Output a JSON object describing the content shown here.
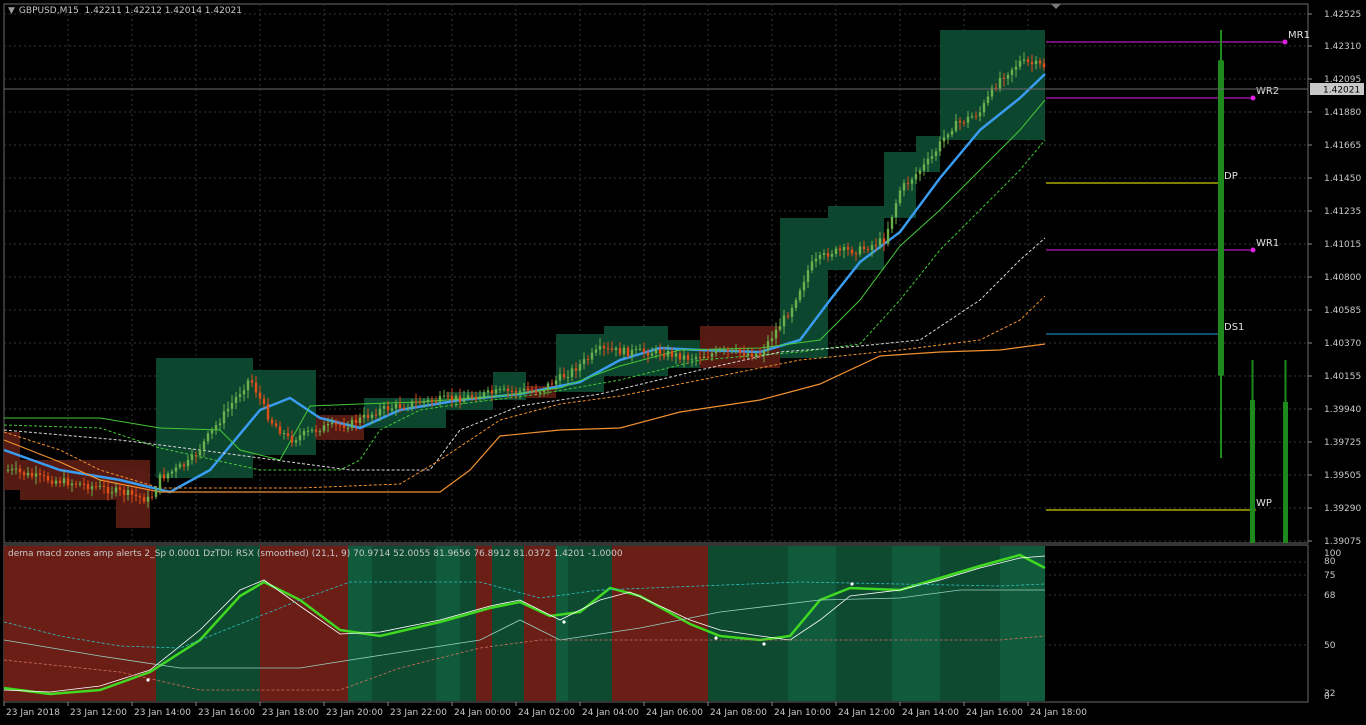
{
  "header": {
    "symbol": "GBPUSD,M15",
    "ohlc": "1.42211 1.42212 1.42014 1.42021"
  },
  "indicator_header": "dema macd zones amp alerts 2_Sp 0.0001  DzTDI:  RSX (smoothed) (21,1, 9) 70.9714 52.0055 81.9656 76.8912 81.0372 1.4201 -1.0000",
  "price_axis": {
    "labels": [
      "1.42525",
      "1.42310",
      "1.42095",
      "1.41880",
      "1.41665",
      "1.41450",
      "1.41235",
      "1.41015",
      "1.40800",
      "1.40585",
      "1.40370",
      "1.40155",
      "1.39940",
      "1.39725",
      "1.39505",
      "1.39290",
      "1.39075"
    ],
    "current_price": "1.42021"
  },
  "sub_axis": {
    "labels": [
      "100",
      "80",
      "75",
      "68",
      "50",
      "32",
      "0"
    ]
  },
  "time_axis": {
    "labels": [
      "23 Jan 2018",
      "23 Jan 12:00",
      "23 Jan 14:00",
      "23 Jan 16:00",
      "23 Jan 18:00",
      "23 Jan 20:00",
      "23 Jan 22:00",
      "24 Jan 00:00",
      "24 Jan 02:00",
      "24 Jan 04:00",
      "24 Jan 06:00",
      "24 Jan 08:00",
      "24 Jan 10:00",
      "24 Jan 12:00",
      "24 Jan 14:00",
      "24 Jan 16:00",
      "24 Jan 18:00"
    ]
  },
  "pivots": [
    {
      "label": "MR1",
      "color": "#e020e0"
    },
    {
      "label": "WR2",
      "color": "#e020e0"
    },
    {
      "label": "DP",
      "color": "#ffff00"
    },
    {
      "label": "WR1",
      "color": "#e020e0"
    },
    {
      "label": "DS1",
      "color": "#1ea0e0"
    },
    {
      "label": "WP",
      "color": "#ffff00"
    }
  ],
  "colors": {
    "bull_candle": "#6ab04c",
    "bear_candle": "#e04e1a",
    "bull_zone": "#0e4a32",
    "bear_zone": "#5a1c14",
    "dema": "#3a9cf0",
    "green_ma": "#44c838",
    "orange_ma": "#f09030",
    "grid": "#2f3a2f"
  }
}
